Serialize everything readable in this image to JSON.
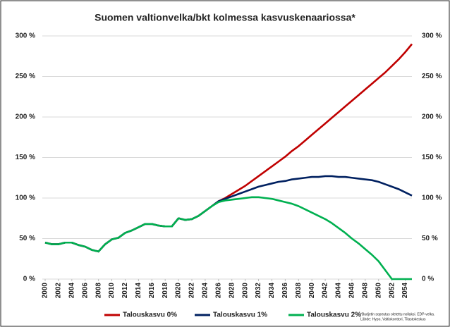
{
  "chart_data": {
    "type": "line",
    "title": "Suomen valtionvelka/bkt kolmessa kasvuskenaariossa*",
    "x": [
      2000,
      2001,
      2002,
      2003,
      2004,
      2005,
      2006,
      2007,
      2008,
      2009,
      2010,
      2011,
      2012,
      2013,
      2014,
      2015,
      2016,
      2017,
      2018,
      2019,
      2020,
      2021,
      2022,
      2023,
      2024,
      2025,
      2026,
      2027,
      2028,
      2029,
      2030,
      2031,
      2032,
      2033,
      2034,
      2035,
      2036,
      2037,
      2038,
      2039,
      2040,
      2041,
      2042,
      2043,
      2044,
      2045,
      2046,
      2047,
      2048,
      2049,
      2050,
      2051,
      2052,
      2053,
      2054,
      2055
    ],
    "xlim": [
      2000,
      2055
    ],
    "xticks": [
      2000,
      2002,
      2004,
      2006,
      2008,
      2010,
      2012,
      2014,
      2016,
      2018,
      2020,
      2022,
      2024,
      2026,
      2028,
      2030,
      2032,
      2034,
      2036,
      2038,
      2040,
      2042,
      2044,
      2046,
      2048,
      2050,
      2052,
      2054
    ],
    "ylim": [
      0,
      300
    ],
    "yticks": [
      {
        "value": 0,
        "label": "0 %"
      },
      {
        "value": 50,
        "label": "50 %"
      },
      {
        "value": 100,
        "label": "100 %"
      },
      {
        "value": 150,
        "label": "150 %"
      },
      {
        "value": 200,
        "label": "200 %"
      },
      {
        "value": 250,
        "label": "250 %"
      },
      {
        "value": 300,
        "label": "300 %"
      }
    ],
    "y2lim": [
      0,
      300
    ],
    "y2ticks": [
      {
        "value": 0,
        "label": "0 %"
      },
      {
        "value": 50,
        "label": "50 %"
      },
      {
        "value": 100,
        "label": "100 %"
      },
      {
        "value": 150,
        "label": "150 %"
      },
      {
        "value": 200,
        "label": "200 %"
      },
      {
        "value": 250,
        "label": "250 %"
      },
      {
        "value": 300,
        "label": "300 %"
      }
    ],
    "grid": true,
    "legend": "bottom",
    "series": [
      {
        "name": "Talouskasvu 0%",
        "color": "#c00000",
        "values": [
          45,
          43,
          43,
          45,
          45,
          42,
          40,
          36,
          34,
          43,
          49,
          51,
          57,
          60,
          64,
          68,
          68,
          66,
          65,
          65,
          75,
          73,
          74,
          78,
          84,
          90,
          96,
          100,
          105,
          110,
          115,
          121,
          127,
          133,
          139,
          145,
          151,
          158,
          164,
          171,
          178,
          185,
          192,
          199,
          206,
          213,
          220,
          227,
          234,
          241,
          248,
          255,
          263,
          271,
          280,
          290
        ]
      },
      {
        "name": "Talouskasvu 1%",
        "color": "#002060",
        "values": [
          45,
          43,
          43,
          45,
          45,
          42,
          40,
          36,
          34,
          43,
          49,
          51,
          57,
          60,
          64,
          68,
          68,
          66,
          65,
          65,
          75,
          73,
          74,
          78,
          84,
          90,
          96,
          99,
          102,
          105,
          108,
          111,
          114,
          116,
          118,
          120,
          121,
          123,
          124,
          125,
          126,
          126,
          127,
          127,
          126,
          126,
          125,
          124,
          123,
          122,
          120,
          117,
          114,
          111,
          107,
          103
        ]
      },
      {
        "name": "Talouskasvu 2%",
        "color": "#00b050",
        "values": [
          45,
          43,
          43,
          45,
          45,
          42,
          40,
          36,
          34,
          43,
          49,
          51,
          57,
          60,
          64,
          68,
          68,
          66,
          65,
          65,
          75,
          73,
          74,
          78,
          84,
          90,
          95,
          97,
          98,
          99,
          100,
          101,
          101,
          100,
          99,
          97,
          95,
          93,
          90,
          86,
          82,
          78,
          74,
          69,
          63,
          57,
          50,
          44,
          37,
          30,
          22,
          11,
          0,
          0,
          0,
          0
        ]
      }
    ],
    "footnote": [
      "*Budjetin sopeutus oletettu nollaksi. EDP-velka.",
      "Lähde: Hypo, Valtiokonttori, Tilastokeskus"
    ]
  }
}
